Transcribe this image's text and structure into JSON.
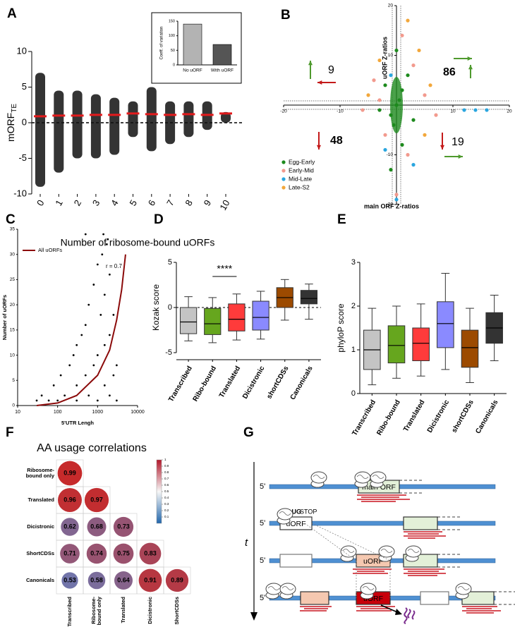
{
  "chart_data": [
    {
      "label": "A",
      "type": "strip",
      "ylabel": "mORF",
      "ylabel_sub": "TE",
      "xlabel": "Number of ribosome-bound uORFs",
      "categories": [
        "0",
        "1",
        "2",
        "3",
        "4",
        "5",
        "6",
        "7",
        "8",
        "9",
        "10"
      ],
      "values": [
        0.9,
        1,
        1,
        1.1,
        1.1,
        1.3,
        1.2,
        1.1,
        1.2,
        1.1,
        1.3
      ],
      "min": [
        -9,
        -7,
        -5,
        -5,
        -4.5,
        -2,
        -4,
        -3,
        -2,
        -1,
        0
      ],
      "max": [
        7,
        4.5,
        4.5,
        4,
        3.5,
        3,
        5,
        3,
        3,
        3,
        1.5
      ],
      "color": "#e31a1c",
      "point_color": "#111111",
      "ref_line": 0,
      "ylim": [
        -10,
        10
      ],
      "yticks": [
        -10,
        -5,
        0,
        5,
        10
      ]
    },
    {
      "type": "bar",
      "ylabel": "Coeff. of variation",
      "categories": [
        "No uORF",
        "With uORF"
      ],
      "values": [
        140,
        70
      ],
      "colors": [
        "#b3b3b3",
        "#555555"
      ],
      "ylim": [
        0,
        150
      ],
      "yticks": [
        0,
        50,
        100,
        150
      ]
    },
    {
      "label": "B",
      "type": "scatter",
      "xlabel": "main ORF Z-ratios",
      "ylabel": "uORF Z-ratios",
      "xlim": [
        -20,
        20
      ],
      "ylim": [
        -20,
        20
      ],
      "xticks": [
        -20,
        -10,
        10,
        20
      ],
      "yticks": [
        -20,
        -10,
        10,
        20
      ],
      "legend": "lower left",
      "series": [
        {
          "name": "Egg-Early",
          "color": "#1d8a1d",
          "x": [
            0,
            1,
            -1,
            2,
            -2,
            1,
            3,
            -3,
            0,
            -1,
            0.5,
            -0.5
          ],
          "values": [
            0,
            3,
            -2,
            6,
            4,
            -8,
            -3,
            -1,
            11,
            -13,
            1,
            -4
          ]
        },
        {
          "name": "Early-Mid",
          "color": "#f29a8e",
          "x": [
            -4,
            5,
            -6,
            3,
            -2,
            7,
            0,
            1,
            -3,
            2
          ],
          "values": [
            5,
            2,
            -1,
            8,
            -6,
            -2,
            -18,
            14,
            1,
            -10
          ]
        },
        {
          "name": "Mid-Late",
          "color": "#2aa6df",
          "x": [
            12,
            14,
            16,
            -2,
            3,
            0,
            -1
          ],
          "values": [
            -1,
            -1,
            -1,
            -9,
            -12,
            -19,
            6
          ]
        },
        {
          "name": "Late-S2",
          "color": "#f2a73b",
          "x": [
            2,
            4,
            -3,
            5,
            -5,
            6
          ],
          "values": [
            17,
            11,
            9,
            -6,
            2,
            4
          ]
        }
      ],
      "quadrant_counts": {
        "upper_left": 9,
        "upper_right": 86,
        "lower_left": 48,
        "lower_right": 19
      }
    },
    {
      "label": "C",
      "type": "scatter_fit",
      "xlabel": "5'UTR Lengh",
      "ylabel": "Number of uORFs",
      "log_x": true,
      "xlim": [
        10,
        10000
      ],
      "xticks": [
        10,
        100,
        1000,
        10000
      ],
      "ylim": [
        0,
        35
      ],
      "yticks": [
        0,
        5,
        10,
        15,
        20,
        25,
        30,
        35
      ],
      "points_x": [
        30,
        60,
        100,
        300,
        1000,
        3000,
        40,
        150,
        600,
        2000,
        80,
        300,
        1500,
        120,
        500,
        2500,
        200,
        800,
        3000,
        250,
        1000,
        300,
        1500,
        400,
        2000,
        500,
        1200,
        2500,
        600,
        1500,
        800,
        2000,
        1000,
        1300,
        1700,
        1400,
        500,
        1800
      ],
      "points_y": [
        1,
        1,
        1,
        1,
        1,
        1,
        2,
        2,
        2,
        2,
        4,
        4,
        4,
        6,
        6,
        6,
        8,
        8,
        8,
        10,
        10,
        12,
        12,
        14,
        14,
        16,
        18,
        18,
        20,
        22,
        24,
        26,
        28,
        30,
        32,
        34,
        34,
        33
      ],
      "point_color": "#000000",
      "series": [
        {
          "name": "All uORFs",
          "color": "#8b0a0a",
          "x": [
            30,
            100,
            300,
            1000,
            2000,
            3000,
            4000,
            5000
          ],
          "values": [
            0,
            0.5,
            2,
            6,
            11,
            17,
            23,
            30
          ]
        }
      ],
      "annotation": "r = 0.7"
    },
    {
      "label": "D",
      "type": "box",
      "ylabel": "Kozak score",
      "categories": [
        "Transcribed",
        "Ribo-bound",
        "Translated",
        "Dicistronic",
        "shortCDSs",
        "Canonicals"
      ],
      "colors": [
        "#c4c4c4",
        "#66a61e",
        "#ff3b3b",
        "#8a8aff",
        "#9c4a00",
        "#333333"
      ],
      "boxes": [
        [
          -3.7,
          -2.9,
          -1.6,
          0,
          1.2
        ],
        [
          -3.9,
          -3,
          -1.8,
          -0.1,
          1.1
        ],
        [
          -3.6,
          -2.6,
          -1.3,
          0.4,
          1.5
        ],
        [
          -3.5,
          -2.5,
          -1.1,
          0.7,
          1.8
        ],
        [
          -1.4,
          0,
          1.1,
          2.2,
          3.1
        ],
        [
          -1.3,
          0.4,
          1,
          1.9,
          2.6
        ]
      ],
      "ref_line": 0,
      "annotation": "****",
      "ylim": [
        -5,
        5
      ],
      "yticks": [
        -5,
        0,
        5
      ]
    },
    {
      "label": "E",
      "type": "box",
      "ylabel": "phyloP score",
      "categories": [
        "Transcribed",
        "Ribo-bound",
        "Translated",
        "Dicistronic",
        "shortCDSs",
        "Canonicals"
      ],
      "colors": [
        "#c4c4c4",
        "#66a61e",
        "#ff3b3b",
        "#8a8aff",
        "#9c4a00",
        "#333333"
      ],
      "boxes": [
        [
          0.2,
          0.55,
          1,
          1.45,
          1.95
        ],
        [
          0.35,
          0.7,
          1.1,
          1.55,
          2
        ],
        [
          0.4,
          0.75,
          1.15,
          1.5,
          2.05
        ],
        [
          0.55,
          1.05,
          1.6,
          2.1,
          2.75
        ],
        [
          0.25,
          0.6,
          1.05,
          1.45,
          1.95
        ],
        [
          0.75,
          1.15,
          1.5,
          1.85,
          2.25
        ]
      ],
      "ylim": [
        0,
        3
      ],
      "yticks": [
        0,
        1,
        2,
        3
      ]
    },
    {
      "label": "F",
      "type": "corr_matrix",
      "title": "AA usage correlations",
      "rows": [
        [
          "Ribosome-",
          "bound only"
        ],
        "Translated",
        "Dicistronic",
        "ShortCDSs",
        "Canonicals"
      ],
      "columns": [
        "Transcribed",
        [
          "Ribosome-",
          "bound only"
        ],
        "Translated",
        "Dicistronic",
        "ShortCDSs"
      ],
      "values": [
        [
          0.99
        ],
        [
          0.96,
          0.97
        ],
        [
          0.62,
          0.68,
          0.73
        ],
        [
          0.71,
          0.74,
          0.75,
          0.83
        ],
        [
          0.53,
          0.58,
          0.64,
          0.91,
          0.89
        ]
      ],
      "colorbar_ticks": [
        1,
        0.9,
        0.8,
        0.7,
        0.6,
        0.5,
        0.4,
        0.3,
        0.2,
        0.1
      ]
    }
  ],
  "diagram": {
    "label": "G",
    "five_prime": "5'",
    "main_orf": "main ORF",
    "start_codon": "AUG",
    "stop_codon": "STOP",
    "uorf": "uORF",
    "time_axis": "t"
  }
}
